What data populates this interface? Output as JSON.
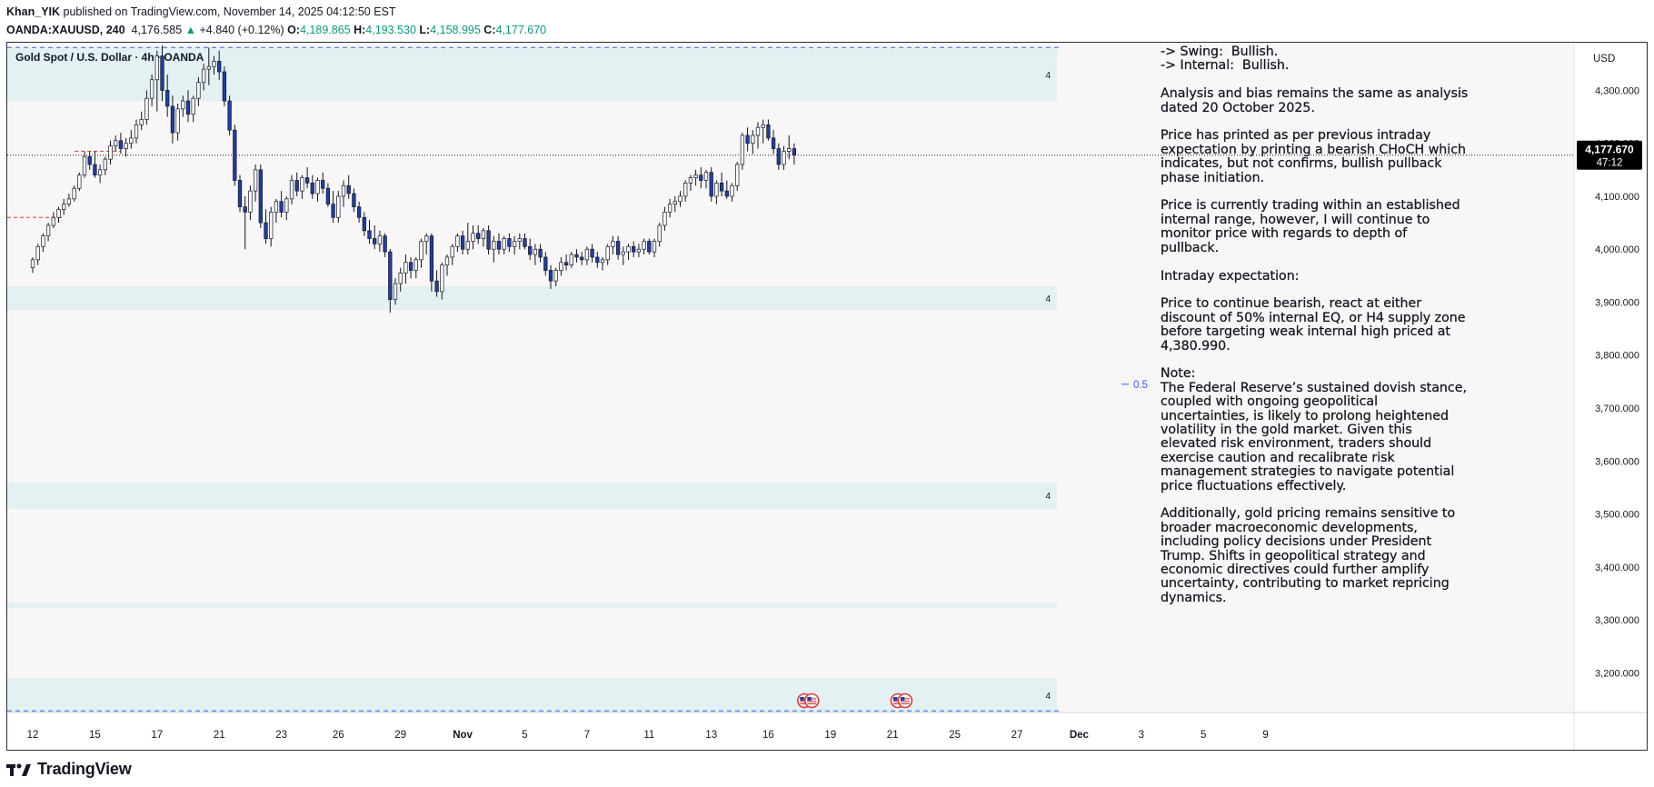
{
  "header": {
    "author": "Khan_YIK",
    "published_text": "published on TradingView.com, November 14, 2025 04:12:50 EST",
    "symbol": "OANDA:XAUUSD, 240",
    "last": "4,176.585",
    "change_arrow": "▲",
    "change": "+4.840 (+0.12%)",
    "o_label": "O:",
    "o_value": "4,189.865",
    "h_label": "H:",
    "h_value": "4,193.530",
    "l_label": "L:",
    "l_value": "4,158.995",
    "c_label": "C:",
    "c_value": "4,177.670"
  },
  "chart_title": "Gold Spot / U.S. Dollar · 4h · OANDA",
  "currency": "USD",
  "price_label": {
    "value": "4,177.670",
    "countdown": "47:12"
  },
  "fib_label": "0.5",
  "zone_label": "4",
  "annotation": "-> Swing:  Bullish.\n-> Internal:  Bullish.\n\nAnalysis and bias remains the same as analysis\ndated 20 October 2025.\n\nPrice has printed as per previous intraday\nexpectation by printing a bearish CHoCH which\nindicates, but not confirms, bullish pullback\nphase initiation.\n\nPrice is currently trading within an established\ninternal range, however, I will continue to\nmonitor price with regards to depth of\npullback.\n\nIntraday expectation:\n\nPrice to continue bearish, react at either\ndiscount of 50% internal EQ, or H4 supply zone\nbefore targeting weak internal high priced at\n4,380.990.\n\nNote:\nThe Federal Reserve’s sustained dovish stance,\ncoupled with ongoing geopolitical\nuncertainties, is likely to prolong heightened\nvolatility in the gold market. Given this\nelevated risk environment, traders should\nexercise caution and recalibrate risk\nmanagement strategies to navigate potential\nprice fluctuations effectively.\n\nAdditionally, gold pricing remains sensitive to\nbroader macroeconomic developments,\nincluding policy decisions under President\nTrump. Shifts in geopolitical strategy and\neconomic directives could further amplify\nuncertainty, contributing to market repricing\ndynamics.",
  "watermark": "TradingView",
  "colors": {
    "up": "#ffffff",
    "down": "#1e3ea8",
    "wick": "#131722",
    "zone": "#e3f1f3",
    "bg": "#f8f6f7",
    "label": "#000000"
  },
  "chart_data": {
    "type": "candlestick",
    "title": "Gold Spot / U.S. Dollar · 4h · OANDA",
    "y_axis": {
      "min": 3125,
      "max": 4390,
      "ticks": [
        3200,
        3300,
        3400,
        3500,
        3600,
        3700,
        3800,
        3900,
        4000,
        4100,
        4200,
        4300
      ],
      "tick_labels": [
        "3,200.000",
        "3,300.000",
        "3,400.000",
        "3,500.000",
        "3,600.000",
        "3,700.000",
        "3,800.000",
        "3,900.000",
        "4,000.000",
        "4,100.000",
        "4,200.000",
        "4,300.000"
      ]
    },
    "x_axis": {
      "tick_labels": [
        "12",
        "15",
        "17",
        "21",
        "23",
        "26",
        "29",
        "Nov",
        "5",
        "7",
        "11",
        "13",
        "16",
        "19",
        "21",
        "25",
        "27",
        "Dec",
        "3",
        "5",
        "9"
      ],
      "tick_index": [
        0,
        12,
        24,
        36,
        48,
        59,
        71,
        83,
        95,
        107,
        119,
        131,
        142,
        154,
        166,
        178,
        190,
        202,
        214,
        226,
        238
      ]
    },
    "current_price": 4177.67,
    "fib_level": {
      "label": "0.5",
      "price": 3745
    },
    "zones": [
      {
        "name": "supply-zone-top",
        "from": 4280,
        "to": 4380
      },
      {
        "name": "demand-zone-mid",
        "from": 3885,
        "to": 3930
      },
      {
        "name": "demand-zone-low",
        "from": 3510,
        "to": 3560
      },
      {
        "name": "zone-thin",
        "from": 3322,
        "to": 3332
      },
      {
        "name": "demand-zone-bottom",
        "from": 3125,
        "to": 3190
      }
    ],
    "dashed_levels": [
      4380.99,
      3128
    ],
    "small_levels": [
      {
        "price": 4060,
        "from_index": 0,
        "to_index": 6,
        "color": "#e53935"
      },
      {
        "price": 4185,
        "from_index": 13,
        "to_index": 17,
        "color": "#e53935"
      }
    ],
    "event_markers": [
      {
        "index": 149,
        "count": 2
      },
      {
        "index": 167,
        "count": 2
      }
    ],
    "candles": [
      [
        3965,
        3985,
        3955,
        3980
      ],
      [
        3980,
        4010,
        3970,
        4005
      ],
      [
        4005,
        4030,
        3995,
        4025
      ],
      [
        4025,
        4050,
        4015,
        4045
      ],
      [
        4045,
        4070,
        4040,
        4060
      ],
      [
        4060,
        4080,
        4050,
        4075
      ],
      [
        4075,
        4095,
        4065,
        4085
      ],
      [
        4085,
        4105,
        4080,
        4095
      ],
      [
        4095,
        4120,
        4090,
        4115
      ],
      [
        4115,
        4145,
        4110,
        4140
      ],
      [
        4140,
        4185,
        4135,
        4175
      ],
      [
        4175,
        4185,
        4150,
        4160
      ],
      [
        4160,
        4185,
        4135,
        4140
      ],
      [
        4140,
        4160,
        4125,
        4150
      ],
      [
        4150,
        4175,
        4140,
        4170
      ],
      [
        4170,
        4205,
        4160,
        4195
      ],
      [
        4195,
        4215,
        4185,
        4205
      ],
      [
        4205,
        4220,
        4180,
        4190
      ],
      [
        4190,
        4210,
        4175,
        4200
      ],
      [
        4200,
        4225,
        4190,
        4210
      ],
      [
        4210,
        4245,
        4200,
        4235
      ],
      [
        4235,
        4260,
        4225,
        4245
      ],
      [
        4245,
        4300,
        4235,
        4285
      ],
      [
        4285,
        4330,
        4270,
        4320
      ],
      [
        4320,
        4375,
        4260,
        4365
      ],
      [
        4365,
        4385,
        4280,
        4300
      ],
      [
        4300,
        4330,
        4250,
        4270
      ],
      [
        4270,
        4290,
        4200,
        4220
      ],
      [
        4220,
        4275,
        4205,
        4265
      ],
      [
        4265,
        4290,
        4250,
        4280
      ],
      [
        4280,
        4300,
        4240,
        4255
      ],
      [
        4255,
        4290,
        4240,
        4285
      ],
      [
        4285,
        4325,
        4270,
        4315
      ],
      [
        4315,
        4350,
        4300,
        4340
      ],
      [
        4340,
        4381,
        4310,
        4345
      ],
      [
        4345,
        4365,
        4330,
        4355
      ],
      [
        4355,
        4375,
        4320,
        4335
      ],
      [
        4335,
        4345,
        4270,
        4280
      ],
      [
        4280,
        4290,
        4215,
        4225
      ],
      [
        4225,
        4235,
        4120,
        4130
      ],
      [
        4130,
        4140,
        4070,
        4080
      ],
      [
        4080,
        4100,
        4000,
        4070
      ],
      [
        4070,
        4120,
        4055,
        4110
      ],
      [
        4110,
        4160,
        4090,
        4150
      ],
      [
        4150,
        4160,
        4040,
        4050
      ],
      [
        4050,
        4075,
        4010,
        4020
      ],
      [
        4020,
        4080,
        4005,
        4070
      ],
      [
        4070,
        4095,
        4050,
        4090
      ],
      [
        4090,
        4110,
        4060,
        4070
      ],
      [
        4070,
        4100,
        4055,
        4095
      ],
      [
        4095,
        4140,
        4085,
        4130
      ],
      [
        4130,
        4145,
        4100,
        4110
      ],
      [
        4110,
        4140,
        4095,
        4135
      ],
      [
        4135,
        4155,
        4115,
        4125
      ],
      [
        4125,
        4140,
        4095,
        4105
      ],
      [
        4105,
        4135,
        4090,
        4130
      ],
      [
        4130,
        4145,
        4105,
        4115
      ],
      [
        4115,
        4125,
        4080,
        4085
      ],
      [
        4085,
        4110,
        4050,
        4060
      ],
      [
        4060,
        4110,
        4050,
        4100
      ],
      [
        4100,
        4130,
        4080,
        4120
      ],
      [
        4120,
        4140,
        4095,
        4105
      ],
      [
        4105,
        4115,
        4070,
        4080
      ],
      [
        4080,
        4090,
        4050,
        4060
      ],
      [
        4060,
        4070,
        4025,
        4035
      ],
      [
        4035,
        4055,
        4010,
        4020
      ],
      [
        4020,
        4045,
        4000,
        4010
      ],
      [
        4010,
        4035,
        3995,
        4025
      ],
      [
        4025,
        4030,
        3985,
        3995
      ],
      [
        3995,
        4000,
        3880,
        3905
      ],
      [
        3905,
        3945,
        3895,
        3935
      ],
      [
        3935,
        3965,
        3920,
        3955
      ],
      [
        3955,
        3990,
        3935,
        3975
      ],
      [
        3975,
        3985,
        3945,
        3960
      ],
      [
        3960,
        3985,
        3945,
        3980
      ],
      [
        3980,
        4020,
        3965,
        4015
      ],
      [
        4015,
        4030,
        3990,
        4025
      ],
      [
        4025,
        4030,
        3920,
        3940
      ],
      [
        3940,
        3960,
        3910,
        3920
      ],
      [
        3920,
        3975,
        3905,
        3970
      ],
      [
        3970,
        3990,
        3950,
        3985
      ],
      [
        3985,
        4010,
        3970,
        4005
      ],
      [
        4005,
        4030,
        3995,
        4025
      ],
      [
        4025,
        4035,
        3990,
        4000
      ],
      [
        4000,
        4050,
        3990,
        4015
      ],
      [
        4015,
        4045,
        4000,
        4030
      ],
      [
        4030,
        4045,
        4010,
        4020
      ],
      [
        4020,
        4040,
        4005,
        4035
      ],
      [
        4035,
        4045,
        3990,
        4000
      ],
      [
        4000,
        4025,
        3975,
        4015
      ],
      [
        4015,
        4030,
        3990,
        4000
      ],
      [
        4000,
        4025,
        3990,
        4020
      ],
      [
        4020,
        4030,
        3995,
        4005
      ],
      [
        4005,
        4025,
        3990,
        4015
      ],
      [
        4015,
        4030,
        4000,
        4020
      ],
      [
        4020,
        4030,
        4000,
        4005
      ],
      [
        4005,
        4020,
        3980,
        3990
      ],
      [
        3990,
        4010,
        3970,
        4000
      ],
      [
        4000,
        4010,
        3975,
        3985
      ],
      [
        3985,
        3995,
        3950,
        3960
      ],
      [
        3960,
        3970,
        3925,
        3940
      ],
      [
        3940,
        3965,
        3930,
        3960
      ],
      [
        3960,
        3985,
        3950,
        3975
      ],
      [
        3975,
        3990,
        3960,
        3970
      ],
      [
        3970,
        3995,
        3965,
        3990
      ],
      [
        3990,
        4000,
        3975,
        3985
      ],
      [
        3985,
        3995,
        3970,
        3980
      ],
      [
        3980,
        4005,
        3970,
        4000
      ],
      [
        4000,
        4010,
        3975,
        3985
      ],
      [
        3985,
        3995,
        3965,
        3975
      ],
      [
        3975,
        3985,
        3960,
        3980
      ],
      [
        3980,
        4010,
        3970,
        4005
      ],
      [
        4005,
        4025,
        3990,
        4015
      ],
      [
        4015,
        4025,
        3980,
        3990
      ],
      [
        3990,
        4005,
        3970,
        3995
      ],
      [
        3995,
        4010,
        3980,
        4005
      ],
      [
        4005,
        4015,
        3985,
        3995
      ],
      [
        3995,
        4010,
        3985,
        4000
      ],
      [
        4000,
        4020,
        3990,
        4015
      ],
      [
        4015,
        4020,
        3990,
        3995
      ],
      [
        3995,
        4020,
        3985,
        4015
      ],
      [
        4015,
        4050,
        4005,
        4045
      ],
      [
        4045,
        4080,
        4035,
        4070
      ],
      [
        4070,
        4095,
        4060,
        4085
      ],
      [
        4085,
        4100,
        4070,
        4090
      ],
      [
        4090,
        4110,
        4080,
        4100
      ],
      [
        4100,
        4130,
        4090,
        4125
      ],
      [
        4125,
        4140,
        4110,
        4135
      ],
      [
        4135,
        4150,
        4120,
        4140
      ],
      [
        4140,
        4155,
        4115,
        4130
      ],
      [
        4130,
        4150,
        4115,
        4145
      ],
      [
        4145,
        4155,
        4090,
        4100
      ],
      [
        4100,
        4130,
        4085,
        4125
      ],
      [
        4125,
        4145,
        4100,
        4110
      ],
      [
        4110,
        4130,
        4095,
        4100
      ],
      [
        4100,
        4125,
        4090,
        4120
      ],
      [
        4120,
        4165,
        4110,
        4160
      ],
      [
        4160,
        4220,
        4150,
        4215
      ],
      [
        4215,
        4230,
        4185,
        4200
      ],
      [
        4200,
        4225,
        4180,
        4215
      ],
      [
        4215,
        4240,
        4190,
        4230
      ],
      [
        4230,
        4245,
        4200,
        4235
      ],
      [
        4235,
        4245,
        4205,
        4210
      ],
      [
        4210,
        4225,
        4180,
        4190
      ],
      [
        4190,
        4200,
        4150,
        4160
      ],
      [
        4160,
        4195,
        4150,
        4185
      ],
      [
        4185,
        4215,
        4170,
        4190
      ],
      [
        4190,
        4200,
        4160,
        4178
      ]
    ]
  }
}
